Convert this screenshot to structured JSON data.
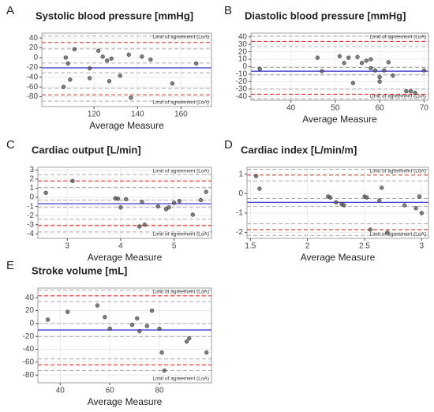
{
  "chart_data": [
    {
      "type": "scatter",
      "panel_label": "A",
      "title": "Systolic blood pressure [mmHg]",
      "x_label": "Average Measure",
      "x": [
        106,
        107,
        108,
        109,
        111,
        118,
        118,
        122,
        124,
        126,
        127,
        128,
        132,
        136,
        137,
        142,
        146,
        156,
        167
      ],
      "y": [
        -60,
        0,
        -12,
        -45,
        17,
        -22,
        -42,
        14,
        2,
        -6,
        -48,
        -2,
        -37,
        6,
        -82,
        2,
        -4,
        -53,
        -12
      ],
      "xlim": [
        96,
        174
      ],
      "ylim": [
        -100,
        50
      ],
      "xticks": [
        120,
        140,
        160
      ],
      "yticks": [
        40,
        20,
        0,
        -20,
        -40,
        -60,
        -80
      ],
      "mean": -21,
      "loa": [
        31,
        -76
      ],
      "ci": [
        44,
        18,
        -11,
        -31,
        -63,
        -89
      ],
      "annotations": [
        "Limit of agreement (LoA)",
        "Limit of agreement (LoA)"
      ],
      "grid": true,
      "point_color": "#555555",
      "mean_color": "#3a3ad6",
      "loa_color": "#e0302a",
      "ci_color": "#aaaaaa"
    },
    {
      "type": "scatter",
      "panel_label": "B",
      "title": "Diastolic blood pressure [mmHg]",
      "x_label": "Average Measure",
      "x": [
        33,
        46,
        47,
        51,
        52,
        53,
        54,
        55,
        56,
        57,
        58,
        58,
        59,
        60,
        60,
        61,
        62,
        63,
        66,
        67,
        68,
        70
      ],
      "y": [
        -3,
        12,
        -6,
        14,
        5,
        12,
        -22,
        13,
        5,
        8,
        10,
        -2,
        -5,
        -20,
        -14,
        -5,
        6,
        -12,
        -33,
        -33,
        -35,
        -5
      ],
      "xlim": [
        31,
        71
      ],
      "ylim": [
        -45,
        45
      ],
      "xticks": [
        40,
        50,
        60,
        70
      ],
      "yticks": [
        40,
        30,
        20,
        10,
        0,
        -10,
        -20,
        -30,
        -40
      ],
      "mean": -6,
      "loa": [
        34,
        -37
      ],
      "ci": [
        41,
        27,
        -1,
        -11,
        -30,
        -43
      ],
      "annotations": [
        "Limit of agreement (LoA)",
        "Limit of agreement (LoA)"
      ],
      "grid": true,
      "point_color": "#555555",
      "mean_color": "#3a3ad6",
      "loa_color": "#e0302a",
      "ci_color": "#aaaaaa"
    },
    {
      "type": "scatter",
      "panel_label": "C",
      "title": "Cardiac output [L/min]",
      "x_label": "Average Measure",
      "x": [
        2.6,
        3.1,
        3.9,
        3.95,
        4.0,
        4.1,
        4.35,
        4.4,
        4.45,
        4.7,
        4.85,
        4.9,
        5.0,
        5.1,
        5.35,
        5.5,
        5.6
      ],
      "y": [
        0.5,
        1.8,
        -0.1,
        -0.15,
        -1.1,
        -0.2,
        -3.2,
        -0.5,
        -3.0,
        -1.0,
        -1.3,
        -1.1,
        -0.6,
        -0.4,
        -1.9,
        -0.3,
        0.6
      ],
      "xlim": [
        2.45,
        5.7
      ],
      "ylim": [
        -4.5,
        3.3
      ],
      "xticks": [
        3,
        4,
        5
      ],
      "yticks": [
        3,
        2,
        1,
        0,
        -1,
        -2,
        -3,
        -4
      ],
      "mean": -0.7,
      "loa": [
        1.8,
        -3.1
      ],
      "ci": [
        2.5,
        1.1,
        -0.3,
        -1.1,
        -2.4,
        -3.8
      ],
      "annotations": [
        "Limit of agreement (LoA)",
        "Limit of agreement (LoA)"
      ],
      "grid": true,
      "point_color": "#555555",
      "mean_color": "#3a3ad6",
      "loa_color": "#e0302a",
      "ci_color": "#aaaaaa"
    },
    {
      "type": "scatter",
      "panel_label": "D",
      "title": "Cardiac index [L/min/m]",
      "x_label": "Average Measure",
      "x": [
        1.55,
        1.58,
        2.18,
        2.2,
        2.25,
        2.3,
        2.32,
        2.5,
        2.52,
        2.55,
        2.63,
        2.65,
        2.7,
        2.85,
        2.95,
        2.98,
        3.0
      ],
      "y": [
        0.9,
        0.25,
        -0.15,
        -0.2,
        -0.45,
        -0.55,
        -0.6,
        -0.15,
        -0.2,
        -1.85,
        -0.35,
        0.3,
        -2.0,
        -0.6,
        -0.75,
        -0.15,
        -1.0
      ],
      "xlim": [
        1.47,
        3.06
      ],
      "ylim": [
        -2.3,
        1.35
      ],
      "xticks": [
        1.5,
        2.0,
        2.5,
        3.0
      ],
      "yticks": [
        1,
        0,
        -1,
        -2
      ],
      "mean": -0.45,
      "loa": [
        0.95,
        -1.85
      ],
      "ci": [
        1.25,
        0.65,
        -0.25,
        -0.65,
        -1.55,
        -2.15
      ],
      "annotations": [
        "Limit of agreement (LoA)",
        "Limit of agreement (LoA)"
      ],
      "grid": true,
      "point_color": "#555555",
      "mean_color": "#3a3ad6",
      "loa_color": "#e0302a",
      "ci_color": "#aaaaaa"
    },
    {
      "type": "scatter",
      "panel_label": "E",
      "title": "Stroke volume [mL]",
      "x_label": "Average Measure",
      "x": [
        35,
        43,
        55,
        58,
        60,
        69,
        71,
        72,
        75,
        77,
        80,
        81,
        82,
        91,
        92,
        99
      ],
      "y": [
        6,
        18,
        28,
        10,
        -8,
        -2,
        8,
        -12,
        -4,
        20,
        -8,
        -45,
        -73,
        -28,
        -23,
        -45
      ],
      "xlim": [
        31,
        101
      ],
      "ylim": [
        -92,
        55
      ],
      "xticks": [
        40,
        60,
        80
      ],
      "yticks": [
        40,
        20,
        0,
        -20,
        -40,
        -60,
        -80
      ],
      "mean": -10,
      "loa": [
        43,
        -64
      ],
      "ci": [
        52,
        34,
        0,
        -20,
        -55,
        -73
      ],
      "annotations": [
        "Limit of agreement (LoA)",
        "Limit of agreement (LoA)"
      ],
      "grid": true,
      "point_color": "#555555",
      "mean_color": "#3a3ad6",
      "loa_color": "#e0302a",
      "ci_color": "#aaaaaa"
    }
  ]
}
